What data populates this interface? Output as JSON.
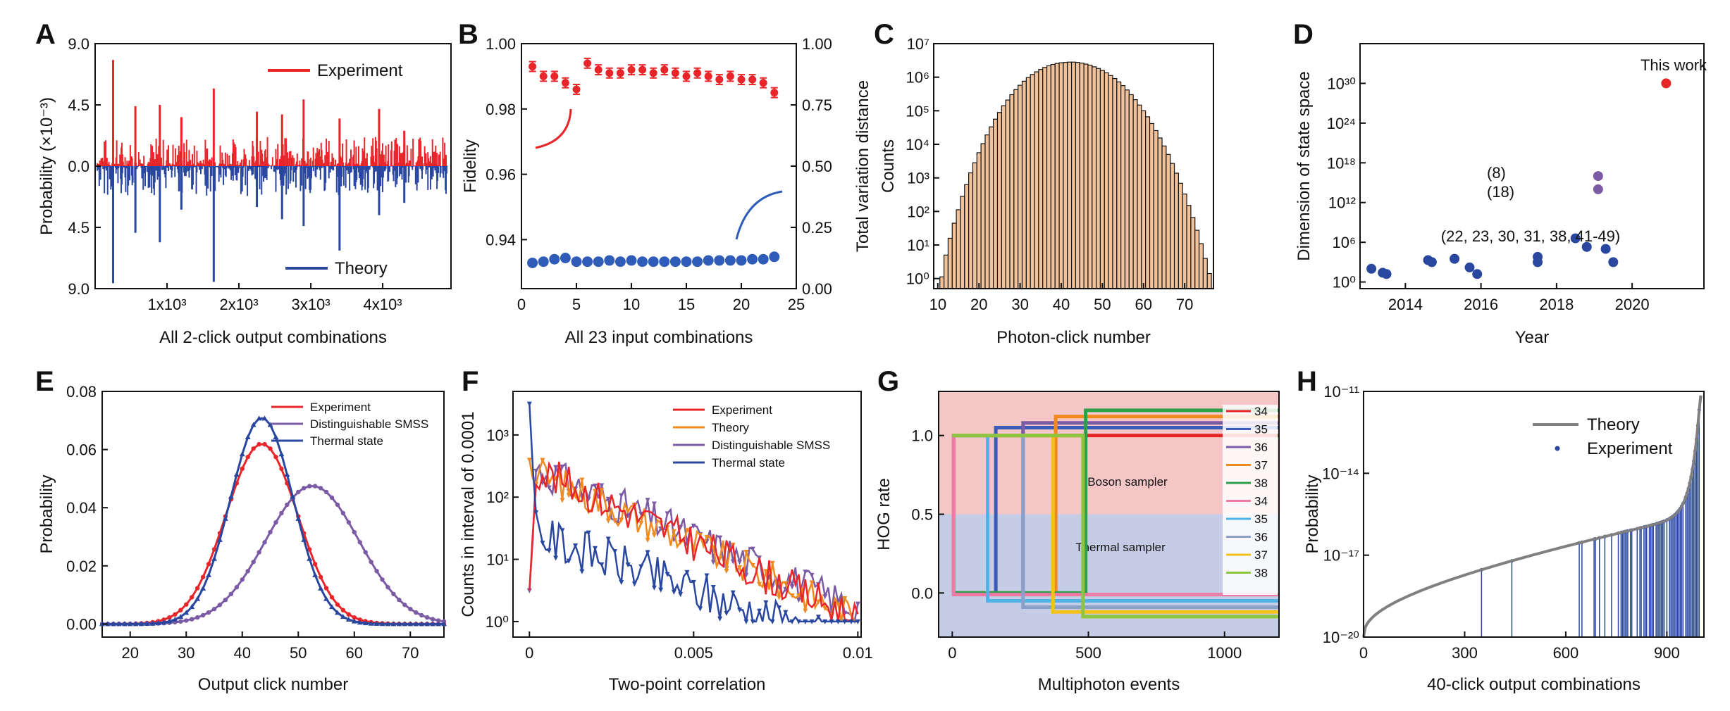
{
  "chart_data": [
    {
      "panel": "A",
      "type": "bar",
      "xlabel": "All 2-click output combinations",
      "ylabel": "Probability (×10⁻³)",
      "xticks": [
        "1x10³",
        "2x10³",
        "3x10³",
        "4x10³"
      ],
      "yticks": [
        "9.0",
        "4.5",
        "0.0",
        "4.5",
        "9.0"
      ],
      "xlim": [
        0,
        4950
      ],
      "ylim": [
        -9,
        9
      ],
      "series": [
        {
          "name": "Experiment",
          "color": "#e8262a",
          "direction": "up",
          "peaks": [
            [
              250,
              7.8
            ],
            [
              560,
              4.4
            ],
            [
              900,
              4.5
            ],
            [
              1200,
              3.6
            ],
            [
              1650,
              5.7
            ],
            [
              2250,
              4.0
            ],
            [
              2600,
              3.8
            ],
            [
              2900,
              4.9
            ],
            [
              3400,
              3.5
            ],
            [
              3950,
              4.2
            ],
            [
              4300,
              2.6
            ]
          ]
        },
        {
          "name": "Theory",
          "color": "#2a47a0",
          "direction": "down",
          "peaks": [
            [
              250,
              8.6
            ],
            [
              560,
              4.9
            ],
            [
              900,
              5.6
            ],
            [
              1200,
              3.2
            ],
            [
              1650,
              8.5
            ],
            [
              2250,
              3.0
            ],
            [
              2600,
              3.9
            ],
            [
              2900,
              4.4
            ],
            [
              3400,
              6.2
            ],
            [
              3950,
              3.6
            ],
            [
              4300,
              2.7
            ]
          ]
        }
      ]
    },
    {
      "panel": "B",
      "type": "scatter",
      "xlabel": "All 23 input combinations",
      "ylabel": "Fidelity",
      "y2label": "Total variation distance",
      "xticks": [
        "0",
        "5",
        "10",
        "15",
        "20",
        "25"
      ],
      "yticks": [
        "0.94",
        "0.96",
        "0.98",
        "1.00"
      ],
      "y2ticks": [
        "0.00",
        "0.25",
        "0.50",
        "0.75",
        "1.00"
      ],
      "xlim": [
        0,
        25
      ],
      "ylim": [
        0.925,
        1.0
      ],
      "y2lim": [
        0,
        1
      ],
      "x": [
        1,
        2,
        3,
        4,
        5,
        6,
        7,
        8,
        9,
        10,
        11,
        12,
        13,
        14,
        15,
        16,
        17,
        18,
        19,
        20,
        21,
        22,
        23
      ],
      "series": [
        {
          "name": "Fidelity",
          "color": "#e8262a",
          "values": [
            0.993,
            0.99,
            0.99,
            0.988,
            0.986,
            0.994,
            0.992,
            0.991,
            0.991,
            0.992,
            0.992,
            0.991,
            0.992,
            0.991,
            0.99,
            0.991,
            0.99,
            0.989,
            0.99,
            0.989,
            0.989,
            0.988,
            0.985
          ],
          "errors": [
            0.0015,
            0.0015,
            0.0015,
            0.0015,
            0.0015,
            0.0015,
            0.0015,
            0.0015,
            0.0015,
            0.0015,
            0.0015,
            0.0015,
            0.0015,
            0.0015,
            0.0015,
            0.0015,
            0.0015,
            0.0015,
            0.0015,
            0.0015,
            0.0015,
            0.0015,
            0.0015
          ]
        },
        {
          "name": "Total variation distance",
          "color": "#2f5cb8",
          "values": [
            0.105,
            0.11,
            0.12,
            0.125,
            0.11,
            0.11,
            0.11,
            0.115,
            0.11,
            0.115,
            0.11,
            0.11,
            0.11,
            0.11,
            0.11,
            0.11,
            0.115,
            0.115,
            0.115,
            0.115,
            0.12,
            0.12,
            0.13
          ]
        }
      ]
    },
    {
      "panel": "C",
      "type": "bar",
      "xlabel": "Photon-click number",
      "ylabel": "Counts",
      "xticks": [
        "10",
        "20",
        "30",
        "40",
        "50",
        "60",
        "70"
      ],
      "yticks": [
        "10⁰",
        "10¹",
        "10²",
        "10³",
        "10⁴",
        "10⁵",
        "10⁶",
        "10⁷"
      ],
      "xlim": [
        9,
        77
      ],
      "ylim_log10": [
        -0.3,
        7
      ],
      "scale": "log",
      "x": [
        11,
        12,
        13,
        14,
        15,
        16,
        17,
        18,
        19,
        20,
        21,
        22,
        23,
        24,
        25,
        26,
        27,
        28,
        29,
        30,
        31,
        32,
        33,
        34,
        35,
        36,
        37,
        38,
        39,
        40,
        41,
        42,
        43,
        44,
        45,
        46,
        47,
        48,
        49,
        50,
        51,
        52,
        53,
        54,
        55,
        56,
        57,
        58,
        59,
        60,
        61,
        62,
        63,
        64,
        65,
        66,
        67,
        68,
        69,
        70,
        71,
        72,
        73,
        74,
        75,
        76
      ],
      "log10_values": [
        0.05,
        0.7,
        1.2,
        1.65,
        2.05,
        2.45,
        2.8,
        3.15,
        3.45,
        3.75,
        4.02,
        4.28,
        4.52,
        4.75,
        4.95,
        5.15,
        5.32,
        5.48,
        5.63,
        5.76,
        5.88,
        5.99,
        6.08,
        6.16,
        6.23,
        6.29,
        6.34,
        6.38,
        6.41,
        6.43,
        6.44,
        6.45,
        6.45,
        6.44,
        6.42,
        6.39,
        6.36,
        6.31,
        6.26,
        6.2,
        6.13,
        6.05,
        5.96,
        5.86,
        5.75,
        5.62,
        5.48,
        5.33,
        5.17,
        5.0,
        4.82,
        4.62,
        4.41,
        4.19,
        3.95,
        3.7,
        3.43,
        3.14,
        2.84,
        2.52,
        2.18,
        1.82,
        1.44,
        1.04,
        0.6,
        0.15
      ],
      "color": "#f2c39a"
    },
    {
      "panel": "D",
      "type": "scatter",
      "xlabel": "Year",
      "ylabel": "Dimension of state space",
      "xticks": [
        "2014",
        "2016",
        "2018",
        "2020"
      ],
      "yticks": [
        "10⁰",
        "10⁶",
        "10¹²",
        "10¹⁸",
        "10²⁴",
        "10³⁰"
      ],
      "xlim": [
        2012.8,
        2021.9
      ],
      "ylim_log10": [
        -1,
        36
      ],
      "scale": "log",
      "points": [
        {
          "x": 2013.1,
          "log10_y": 2.0,
          "color": "#2a47a0"
        },
        {
          "x": 2013.4,
          "log10_y": 1.4,
          "color": "#2a47a0"
        },
        {
          "x": 2013.5,
          "log10_y": 1.2,
          "color": "#2a47a0"
        },
        {
          "x": 2014.6,
          "log10_y": 3.3,
          "color": "#2a47a0"
        },
        {
          "x": 2014.7,
          "log10_y": 3.0,
          "color": "#2a47a0"
        },
        {
          "x": 2015.3,
          "log10_y": 3.5,
          "color": "#2a47a0"
        },
        {
          "x": 2015.7,
          "log10_y": 2.2,
          "color": "#2a47a0"
        },
        {
          "x": 2015.9,
          "log10_y": 1.2,
          "color": "#2a47a0"
        },
        {
          "x": 2017.5,
          "log10_y": 3.8,
          "color": "#2a47a0"
        },
        {
          "x": 2017.5,
          "log10_y": 3.0,
          "color": "#2a47a0"
        },
        {
          "x": 2018.5,
          "log10_y": 6.6,
          "color": "#2a47a0"
        },
        {
          "x": 2018.8,
          "log10_y": 5.3,
          "color": "#2a47a0"
        },
        {
          "x": 2019.3,
          "log10_y": 5.0,
          "color": "#2a47a0"
        },
        {
          "x": 2019.5,
          "log10_y": 3.0,
          "color": "#2a47a0"
        },
        {
          "x": 2019.1,
          "log10_y": 16.0,
          "color": "#7b5aa6"
        },
        {
          "x": 2019.1,
          "log10_y": 14.0,
          "color": "#7b5aa6"
        },
        {
          "x": 2020.9,
          "log10_y": 30.0,
          "color": "#e8262a"
        }
      ],
      "annotations": [
        "This work",
        "(8)",
        "(18)",
        "(22, 23, 30, 31, 38, 41-49)"
      ]
    },
    {
      "panel": "E",
      "type": "line",
      "xlabel": "Output click number",
      "ylabel": "Probability",
      "xticks": [
        "20",
        "30",
        "40",
        "50",
        "60",
        "70"
      ],
      "yticks": [
        "0.00",
        "0.02",
        "0.04",
        "0.06",
        "0.08"
      ],
      "xlim": [
        15,
        76
      ],
      "ylim": [
        -0.0045,
        0.08
      ],
      "legend": "top-right",
      "series": [
        {
          "name": "Experiment",
          "color": "#e8262a",
          "marker": "circle",
          "gaussian": {
            "mu": 43.5,
            "sigma": 6.4,
            "peak": 0.062
          }
        },
        {
          "name": "Distinguishable SMSS",
          "color": "#7b5aa6",
          "marker": "circle",
          "gaussian": {
            "mu": 52.5,
            "sigma": 8.3,
            "peak": 0.0475
          }
        },
        {
          "name": "Thermal state",
          "color": "#2a47a0",
          "marker": "triangle",
          "gaussian": {
            "mu": 43.5,
            "sigma": 5.6,
            "peak": 0.071
          }
        }
      ]
    },
    {
      "panel": "F",
      "type": "line",
      "xlabel": "Two-point correlation",
      "ylabel": "Counts in interval of 0.0001",
      "xticks": [
        "0",
        "0.005",
        "0.01"
      ],
      "yticks": [
        "10⁰",
        "10¹",
        "10²",
        "10³"
      ],
      "xlim": [
        -0.0005,
        0.0101
      ],
      "ylim_log10": [
        -0.25,
        3.7
      ],
      "scale": "log",
      "legend": "top-right",
      "series": [
        {
          "name": "Experiment",
          "color": "#e8262a"
        },
        {
          "name": "Theory",
          "color": "#f08a1e"
        },
        {
          "name": "Distinguishable SMSS",
          "color": "#7b5aa6"
        },
        {
          "name": "Thermal state",
          "color": "#2a47a0"
        }
      ]
    },
    {
      "panel": "G",
      "type": "line",
      "xlabel": "Multiphoton events",
      "ylabel": "HOG rate",
      "xticks": [
        "0",
        "500",
        "1000"
      ],
      "yticks": [
        "0.0",
        "0.5",
        "1.0"
      ],
      "xlim": [
        -50,
        1200
      ],
      "ylim": [
        -0.28,
        1.28
      ],
      "region_labels": [
        "Boson sampler",
        "Thermal sampler"
      ],
      "legend_labels": [
        "34",
        "35",
        "36",
        "37",
        "38",
        "34",
        "35",
        "36",
        "37",
        "38"
      ],
      "series": [
        {
          "name": "34",
          "color": "#e8262a",
          "switch": 5,
          "high": 1.0
        },
        {
          "name": "35",
          "color": "#3b5cb8",
          "switch": 160,
          "high": 1.05
        },
        {
          "name": "36",
          "color": "#7b5aa6",
          "switch": 260,
          "high": 1.08
        },
        {
          "name": "37",
          "color": "#f08a1e",
          "switch": 380,
          "high": 1.12
        },
        {
          "name": "38",
          "color": "#2e9e4a",
          "switch": 490,
          "high": 1.16
        },
        {
          "name": "34",
          "color": "#f07aa6",
          "switch": 5,
          "low": -0.01
        },
        {
          "name": "35",
          "color": "#4fb3e8",
          "switch": 130,
          "low": -0.05
        },
        {
          "name": "36",
          "color": "#8aa0c8",
          "switch": 260,
          "low": -0.09
        },
        {
          "name": "37",
          "color": "#f2c21a",
          "switch": 370,
          "low": -0.12
        },
        {
          "name": "38",
          "color": "#8cc63e",
          "switch": 480,
          "low": -0.15
        }
      ]
    },
    {
      "panel": "H",
      "type": "scatter",
      "xlabel": "40-click output combinations",
      "ylabel": "Probability",
      "xticks": [
        "0",
        "300",
        "600",
        "900"
      ],
      "yticks": [
        "10⁻²⁰",
        "10⁻¹⁷",
        "10⁻¹⁴",
        "10⁻¹¹"
      ],
      "xlim": [
        0,
        1010
      ],
      "ylim_log10": [
        -20,
        -11
      ],
      "scale": "log",
      "legend": "top-right",
      "series": [
        {
          "name": "Theory",
          "color": "#808080"
        },
        {
          "name": "Experiment",
          "color": "#2a47a0"
        }
      ]
    }
  ]
}
